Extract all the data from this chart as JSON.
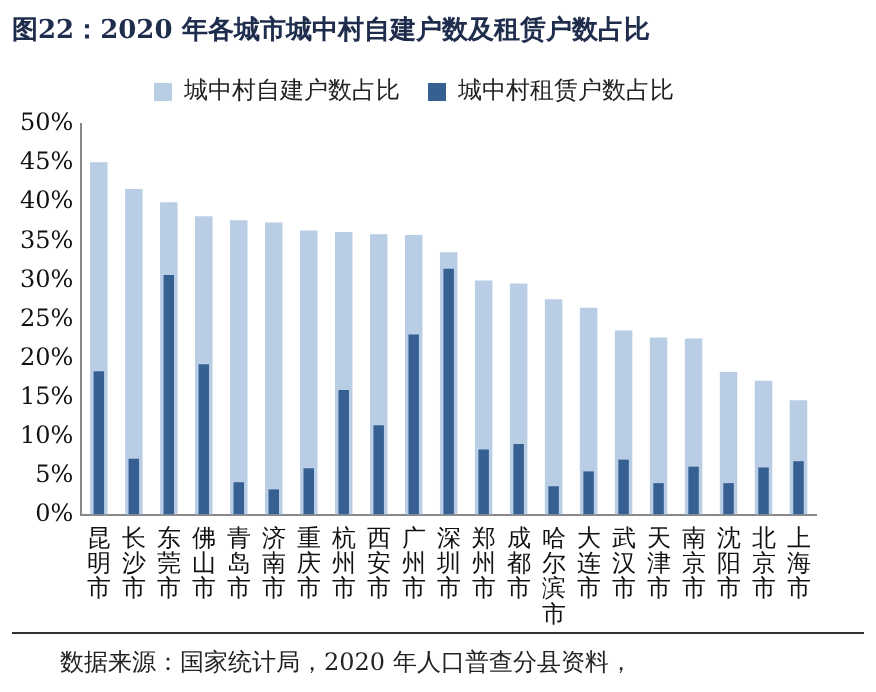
{
  "chart_data": {
    "type": "bar",
    "title": "图22：2020 年各城市城中村自建户数及租赁户数占比",
    "categories": [
      "昆明市",
      "长沙市",
      "东莞市",
      "佛山市",
      "青岛市",
      "济南市",
      "重庆市",
      "杭州市",
      "西安市",
      "广州市",
      "深圳市",
      "郑州市",
      "成都市",
      "哈尔滨市",
      "大连市",
      "武汉市",
      "天津市",
      "南京市",
      "沈阳市",
      "北京市",
      "上海市"
    ],
    "series": [
      {
        "name": "城中村自建户数占比",
        "color": "#b9cde5",
        "values": [
          45.1,
          41.7,
          40,
          38.2,
          37.7,
          37.4,
          36.4,
          36.2,
          35.9,
          35.8,
          33.6,
          30,
          29.6,
          27.6,
          26.5,
          23.6,
          22.7,
          22.6,
          18.3,
          17.2,
          14.7
        ]
      },
      {
        "name": "城中村租赁户数占比",
        "color": "#376092",
        "values": [
          18.4,
          7.2,
          30.7,
          19.3,
          4.2,
          3.3,
          6,
          16,
          11.5,
          23.1,
          31.5,
          8.4,
          9.1,
          3.7,
          5.6,
          7.1,
          4.1,
          6.2,
          4.1,
          6.1,
          6.9
        ]
      }
    ],
    "ylim": [
      0,
      50
    ],
    "yticks": [
      {
        "value": 0,
        "label": "0%"
      },
      {
        "value": 5,
        "label": "5%"
      },
      {
        "value": 10,
        "label": "10%"
      },
      {
        "value": 15,
        "label": "15%"
      },
      {
        "value": 20,
        "label": "20%"
      },
      {
        "value": 25,
        "label": "25%"
      },
      {
        "value": 30,
        "label": "30%"
      },
      {
        "value": 35,
        "label": "35%"
      },
      {
        "value": 40,
        "label": "40%"
      },
      {
        "value": 45,
        "label": "45%"
      },
      {
        "value": 50,
        "label": "50%"
      }
    ],
    "grid": false,
    "legend": "top",
    "annotations": [
      "数据来源：国家统计局，2020 年人口普查分县资料，"
    ]
  }
}
